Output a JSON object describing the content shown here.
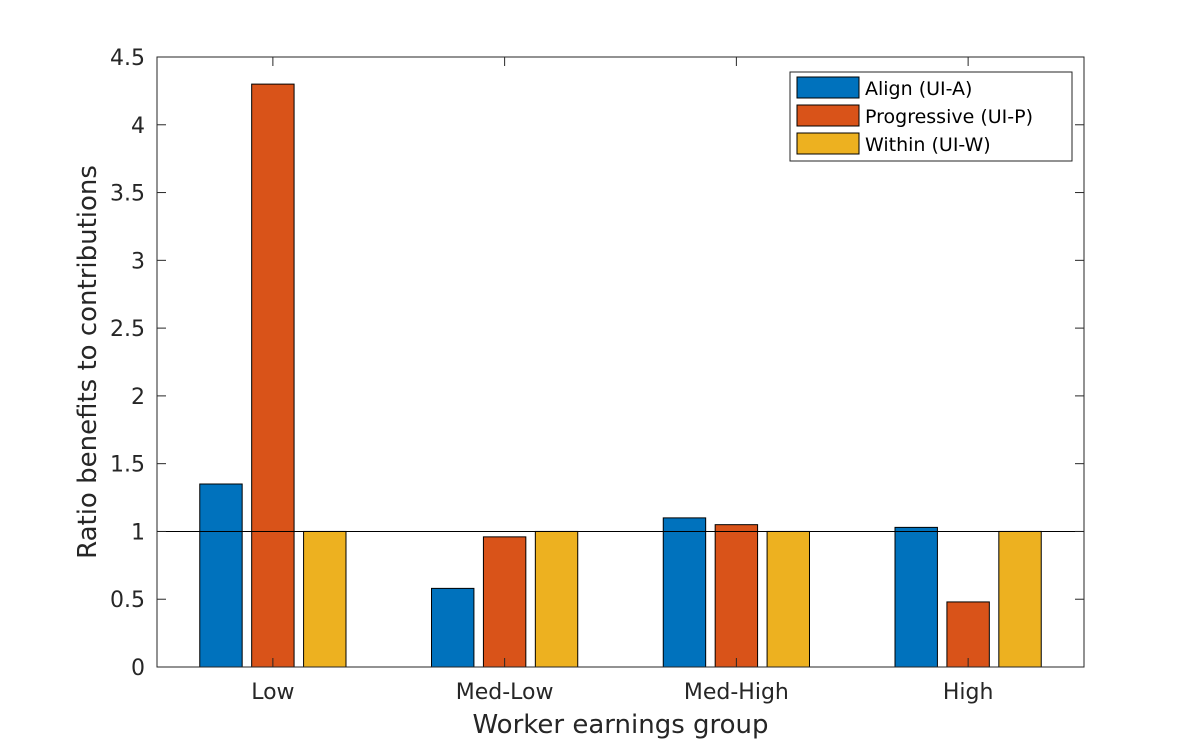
{
  "chart_data": {
    "type": "bar",
    "categories": [
      "Low",
      "Med-Low",
      "Med-High",
      "High"
    ],
    "series": [
      {
        "name": "Align (UI-A)",
        "color": "#0072BD",
        "values": [
          1.35,
          0.58,
          1.1,
          1.03
        ]
      },
      {
        "name": "Progressive (UI-P)",
        "color": "#D95319",
        "values": [
          4.3,
          0.96,
          1.05,
          0.48
        ]
      },
      {
        "name": "Within (UI-W)",
        "color": "#EDB120",
        "values": [
          1.0,
          1.0,
          1.0,
          1.0
        ]
      }
    ],
    "xlabel": "Worker earnings group",
    "ylabel": "Ratio benefits to contributions",
    "ylim": [
      0,
      4.5
    ],
    "yticks": [
      0,
      0.5,
      1,
      1.5,
      2,
      2.5,
      3,
      3.5,
      4,
      4.5
    ],
    "ytick_labels": [
      "0",
      "0.5",
      "1",
      "1.5",
      "2",
      "2.5",
      "3",
      "3.5",
      "4",
      "4.5"
    ],
    "reference_line": 1,
    "grid": false,
    "legend_position": "top-right"
  }
}
